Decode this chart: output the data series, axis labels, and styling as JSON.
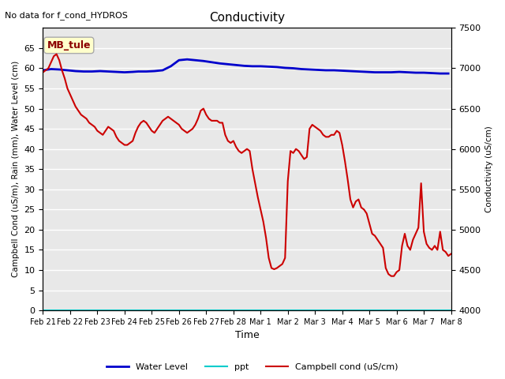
{
  "title": "Conductivity",
  "top_left_text": "No data for f_cond_HYDROS",
  "annotation_box": "MB_tule",
  "xlabel": "Time",
  "ylabel_left": "Campbell Cond (uS/m), Rain (mm), Water Level (cm)",
  "ylabel_right": "Conductivity (uS/cm)",
  "xlim": [
    0,
    15
  ],
  "ylim_left": [
    0,
    70
  ],
  "ylim_right": [
    4000,
    7500
  ],
  "xtick_labels": [
    "Feb 21",
    "Feb 22",
    "Feb 23",
    "Feb 24",
    "Feb 25",
    "Feb 26",
    "Feb 27",
    "Feb 28",
    "Mar 1",
    "Mar 2",
    "Mar 3",
    "Mar 4",
    "Mar 5",
    "Mar 6",
    "Mar 7",
    "Mar 8"
  ],
  "ytick_left": [
    0,
    5,
    10,
    15,
    20,
    25,
    30,
    35,
    40,
    45,
    50,
    55,
    60,
    65
  ],
  "ytick_right": [
    4000,
    4500,
    5000,
    5500,
    6000,
    6500,
    7000,
    7500
  ],
  "bg_color": "#e8e8e8",
  "water_level_color": "#0000cc",
  "ppt_color": "#00cccc",
  "campbell_color": "#cc0000",
  "legend_entries": [
    "Water Level",
    "ppt",
    "Campbell cond (uS/cm)"
  ],
  "water_level_x": [
    0.0,
    0.3,
    0.6,
    0.9,
    1.2,
    1.5,
    1.8,
    2.1,
    2.4,
    2.7,
    3.0,
    3.3,
    3.5,
    3.8,
    4.1,
    4.4,
    4.7,
    5.0,
    5.3,
    5.6,
    5.9,
    6.2,
    6.5,
    6.8,
    7.1,
    7.4,
    7.7,
    8.0,
    8.3,
    8.6,
    8.9,
    9.2,
    9.5,
    9.8,
    10.1,
    10.4,
    10.7,
    11.0,
    11.3,
    11.6,
    11.9,
    12.2,
    12.5,
    12.8,
    13.1,
    13.4,
    13.7,
    14.0,
    14.3,
    14.6,
    14.9
  ],
  "water_level_y": [
    59.5,
    59.8,
    59.7,
    59.5,
    59.3,
    59.2,
    59.2,
    59.3,
    59.2,
    59.1,
    59.0,
    59.1,
    59.2,
    59.2,
    59.3,
    59.5,
    60.5,
    62.0,
    62.2,
    62.0,
    61.8,
    61.5,
    61.2,
    61.0,
    60.8,
    60.6,
    60.5,
    60.5,
    60.4,
    60.3,
    60.1,
    60.0,
    59.8,
    59.7,
    59.6,
    59.5,
    59.5,
    59.4,
    59.3,
    59.2,
    59.1,
    59.0,
    59.0,
    59.0,
    59.1,
    59.0,
    58.9,
    58.9,
    58.8,
    58.7,
    58.7
  ],
  "campbell_x": [
    0.0,
    0.1,
    0.2,
    0.3,
    0.4,
    0.5,
    0.6,
    0.7,
    0.8,
    0.9,
    1.0,
    1.1,
    1.2,
    1.3,
    1.4,
    1.5,
    1.6,
    1.7,
    1.8,
    1.9,
    2.0,
    2.1,
    2.2,
    2.3,
    2.4,
    2.5,
    2.6,
    2.7,
    2.8,
    2.9,
    3.0,
    3.1,
    3.2,
    3.3,
    3.4,
    3.5,
    3.6,
    3.7,
    3.8,
    3.9,
    4.0,
    4.1,
    4.2,
    4.3,
    4.4,
    4.5,
    4.6,
    4.7,
    4.8,
    4.9,
    5.0,
    5.1,
    5.2,
    5.3,
    5.4,
    5.5,
    5.6,
    5.7,
    5.8,
    5.9,
    6.0,
    6.1,
    6.2,
    6.3,
    6.4,
    6.5,
    6.6,
    6.7,
    6.8,
    6.9,
    7.0,
    7.1,
    7.2,
    7.3,
    7.4,
    7.5,
    7.6,
    7.7,
    7.8,
    7.9,
    8.0,
    8.1,
    8.2,
    8.3,
    8.4,
    8.5,
    8.6,
    8.7,
    8.8,
    8.9,
    9.0,
    9.1,
    9.2,
    9.3,
    9.4,
    9.5,
    9.6,
    9.7,
    9.8,
    9.9,
    10.0,
    10.1,
    10.2,
    10.3,
    10.4,
    10.5,
    10.6,
    10.7,
    10.8,
    10.9,
    11.0,
    11.1,
    11.2,
    11.3,
    11.4,
    11.5,
    11.6,
    11.7,
    11.8,
    11.9,
    12.0,
    12.1,
    12.2,
    12.3,
    12.4,
    12.5,
    12.6,
    12.7,
    12.8,
    12.9,
    13.0,
    13.1,
    13.2,
    13.3,
    13.4,
    13.5,
    13.6,
    13.7,
    13.8,
    13.9,
    14.0,
    14.1,
    14.2,
    14.3,
    14.4,
    14.5,
    14.6,
    14.7,
    14.8,
    14.9,
    15.0
  ],
  "campbell_y": [
    59.0,
    59.5,
    60.0,
    61.5,
    63.0,
    63.5,
    62.0,
    59.5,
    57.5,
    55.0,
    53.5,
    52.0,
    50.5,
    49.5,
    48.5,
    48.0,
    47.5,
    46.5,
    46.0,
    45.5,
    44.5,
    44.0,
    43.5,
    44.5,
    45.5,
    45.0,
    44.5,
    43.0,
    42.0,
    41.5,
    41.0,
    41.0,
    41.5,
    42.0,
    44.0,
    45.5,
    46.5,
    47.0,
    46.5,
    45.5,
    44.5,
    44.0,
    45.0,
    46.0,
    47.0,
    47.5,
    48.0,
    47.5,
    47.0,
    46.5,
    46.0,
    45.0,
    44.5,
    44.0,
    44.5,
    45.0,
    46.0,
    47.5,
    49.5,
    50.0,
    48.5,
    47.5,
    47.0,
    47.0,
    47.0,
    46.5,
    46.5,
    43.5,
    42.0,
    41.5,
    42.0,
    40.5,
    39.5,
    39.0,
    39.5,
    40.0,
    39.5,
    35.0,
    31.5,
    28.0,
    25.0,
    22.0,
    18.0,
    13.0,
    10.5,
    10.2,
    10.5,
    11.0,
    11.5,
    13.0,
    32.0,
    39.5,
    39.0,
    40.0,
    39.5,
    38.5,
    37.5,
    38.0,
    45.0,
    46.0,
    45.5,
    45.0,
    44.5,
    43.5,
    43.0,
    43.0,
    43.5,
    43.5,
    44.5,
    44.0,
    41.0,
    37.0,
    32.5,
    27.5,
    25.5,
    27.0,
    27.5,
    25.5,
    25.0,
    24.0,
    21.5,
    19.0,
    18.5,
    17.5,
    16.5,
    15.5,
    10.5,
    9.0,
    8.5,
    8.5,
    9.5,
    10.0,
    16.0,
    19.0,
    16.0,
    15.0,
    17.5,
    19.0,
    20.5,
    31.5,
    19.5,
    16.5,
    15.5,
    15.0,
    16.0,
    15.0,
    19.5,
    15.0,
    14.5,
    13.5,
    14.0
  ]
}
